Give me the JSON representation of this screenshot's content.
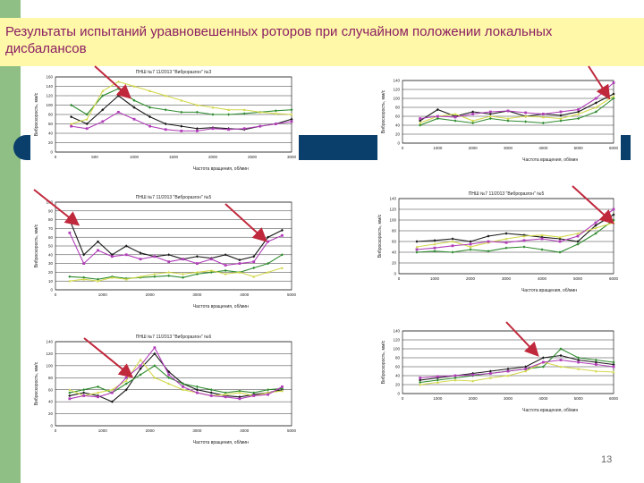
{
  "slide": {
    "title": "Результаты испытаний уравновешенных роторов при случайном положении локальных дисбалансов",
    "page_number": "13"
  },
  "colors": {
    "green_strip": "#8fbf84",
    "blue_bar": "#0b3f6b",
    "title_bg": "#fff8a8",
    "title_text": "#8a1e62",
    "arrow": "#c0283c",
    "series": [
      "#1a1a1a",
      "#2e8b2e",
      "#d2d84a",
      "#b03cb8"
    ]
  },
  "chart_data": [
    {
      "type": "line",
      "title": "ПНШ №7 11/2013 \"Виброразгон\" №3",
      "xlabel": "Частота вращения, об/мин",
      "ylabel": "Виброскорость, мм/с",
      "ylim": [
        0,
        160
      ],
      "yticks": [
        "0",
        "20",
        "40",
        "60",
        "80",
        "100",
        "120",
        "140",
        "160"
      ],
      "xticks": [
        "0",
        "500",
        "1000",
        "1500",
        "2000",
        "2500",
        "3000"
      ],
      "x": [
        200,
        400,
        600,
        800,
        1000,
        1200,
        1400,
        1600,
        1800,
        2000,
        2200,
        2400,
        2600,
        2800,
        3000
      ],
      "series": [
        {
          "values": [
            75,
            60,
            90,
            120,
            95,
            75,
            60,
            55,
            50,
            52,
            50,
            48,
            55,
            60,
            70
          ]
        },
        {
          "values": [
            100,
            80,
            120,
            135,
            110,
            95,
            90,
            85,
            85,
            80,
            80,
            82,
            85,
            88,
            90
          ]
        },
        {
          "values": [
            60,
            70,
            130,
            150,
            140,
            130,
            120,
            110,
            100,
            95,
            90,
            90,
            85,
            82,
            80
          ]
        },
        {
          "values": [
            55,
            50,
            65,
            85,
            70,
            55,
            48,
            45,
            45,
            50,
            48,
            50,
            55,
            60,
            65
          ]
        }
      ]
    },
    {
      "type": "line",
      "title": "",
      "xlabel": "Частота вращения, об/мин",
      "ylabel": "Виброскорость, мм/с",
      "ylim": [
        0,
        140
      ],
      "yticks": [
        "0",
        "20",
        "40",
        "60",
        "80",
        "100",
        "120",
        "140"
      ],
      "xticks": [
        "0",
        "1000",
        "2000",
        "3000",
        "4000",
        "5000",
        "6000"
      ],
      "x": [
        500,
        1000,
        1500,
        2000,
        2500,
        3000,
        3500,
        4000,
        4500,
        5000,
        5500,
        6000
      ],
      "series": [
        {
          "values": [
            50,
            75,
            60,
            70,
            65,
            72,
            60,
            65,
            62,
            70,
            90,
            110
          ]
        },
        {
          "values": [
            40,
            55,
            50,
            45,
            55,
            50,
            48,
            45,
            50,
            55,
            70,
            100
          ]
        },
        {
          "values": [
            45,
            60,
            65,
            50,
            60,
            55,
            60,
            58,
            55,
            65,
            80,
            105
          ]
        },
        {
          "values": [
            55,
            60,
            58,
            65,
            70,
            72,
            68,
            65,
            70,
            75,
            100,
            135
          ]
        }
      ]
    },
    {
      "type": "line",
      "title": "ПНШ №7 11/2013 \"Виброразгон\" №5",
      "xlabel": "Частота вращения, об/мин",
      "ylabel": "Виброскорость, мм/с",
      "ylim": [
        0,
        100
      ],
      "yticks": [
        "0",
        "10",
        "20",
        "30",
        "40",
        "50",
        "60",
        "70",
        "80",
        "90",
        "100"
      ],
      "xticks": [
        "0",
        "1000",
        "2000",
        "3000",
        "4000",
        "5000"
      ],
      "x": [
        300,
        600,
        900,
        1200,
        1500,
        1800,
        2100,
        2400,
        2700,
        3000,
        3300,
        3600,
        3900,
        4200,
        4500,
        4800
      ],
      "series": [
        {
          "values": [
            80,
            40,
            55,
            40,
            50,
            42,
            38,
            40,
            35,
            38,
            36,
            40,
            34,
            38,
            60,
            68
          ]
        },
        {
          "values": [
            15,
            14,
            12,
            15,
            13,
            14,
            15,
            16,
            14,
            18,
            20,
            22,
            20,
            25,
            30,
            40
          ]
        },
        {
          "values": [
            10,
            12,
            10,
            14,
            12,
            15,
            18,
            20,
            18,
            20,
            22,
            18,
            20,
            15,
            20,
            25
          ]
        },
        {
          "values": [
            65,
            30,
            45,
            38,
            40,
            35,
            38,
            32,
            35,
            30,
            35,
            28,
            30,
            32,
            55,
            62
          ]
        }
      ]
    },
    {
      "type": "line",
      "title": "ПНШ №7 11/2013 \"Виброразгон\" №5",
      "xlabel": "Частота вращения, об/мин",
      "ylabel": "Виброскорость, мм/с",
      "ylim": [
        0,
        140
      ],
      "yticks": [
        "0",
        "20",
        "40",
        "60",
        "80",
        "100",
        "120",
        "140"
      ],
      "xticks": [
        "0",
        "1000",
        "2000",
        "3000",
        "4000",
        "5000",
        "6000"
      ],
      "x": [
        500,
        1000,
        1500,
        2000,
        2500,
        3000,
        3500,
        4000,
        4500,
        5000,
        5500,
        6000
      ],
      "series": [
        {
          "values": [
            60,
            62,
            65,
            60,
            70,
            75,
            72,
            68,
            65,
            60,
            90,
            110
          ]
        },
        {
          "values": [
            40,
            42,
            40,
            45,
            42,
            48,
            50,
            45,
            40,
            55,
            75,
            100
          ]
        },
        {
          "values": [
            50,
            55,
            60,
            50,
            58,
            65,
            70,
            72,
            68,
            75,
            85,
            95
          ]
        },
        {
          "values": [
            45,
            48,
            52,
            55,
            60,
            58,
            62,
            65,
            60,
            70,
            95,
            120
          ]
        }
      ]
    },
    {
      "type": "line",
      "title": "ПНШ №7 11/2013 \"Виброразгон\" №6",
      "xlabel": "Частота вращения, об/мин",
      "ylabel": "Виброскорость, мм/с",
      "ylim": [
        0,
        140
      ],
      "yticks": [
        "0",
        "20",
        "40",
        "60",
        "80",
        "100",
        "120",
        "140"
      ],
      "xticks": [
        "0",
        "1000",
        "2000",
        "3000",
        "4000",
        "5000"
      ],
      "x": [
        300,
        600,
        900,
        1200,
        1500,
        1800,
        2100,
        2400,
        2700,
        3000,
        3300,
        3600,
        3900,
        4200,
        4500,
        4800
      ],
      "series": [
        {
          "values": [
            50,
            55,
            50,
            40,
            60,
            95,
            120,
            90,
            70,
            60,
            55,
            50,
            48,
            52,
            55,
            60
          ]
        },
        {
          "values": [
            55,
            60,
            65,
            55,
            70,
            85,
            100,
            80,
            70,
            65,
            60,
            55,
            58,
            55,
            60,
            62
          ]
        },
        {
          "values": [
            60,
            50,
            55,
            60,
            75,
            110,
            80,
            70,
            60,
            55,
            50,
            52,
            55,
            50,
            55,
            58
          ]
        },
        {
          "values": [
            45,
            50,
            48,
            55,
            80,
            100,
            130,
            85,
            65,
            55,
            50,
            48,
            45,
            50,
            52,
            65
          ]
        }
      ]
    },
    {
      "type": "line",
      "title": "",
      "xlabel": "Частота вращения, об/мин",
      "ylabel": "Виброскорость, мм/с",
      "ylim": [
        0,
        140
      ],
      "yticks": [
        "0",
        "20",
        "40",
        "60",
        "80",
        "100",
        "120",
        "140"
      ],
      "xticks": [
        "0",
        "1000",
        "2000",
        "3000",
        "4000",
        "5000",
        "6000"
      ],
      "x": [
        500,
        1000,
        1500,
        2000,
        2500,
        3000,
        3500,
        4000,
        4500,
        5000,
        5500,
        6000
      ],
      "series": [
        {
          "values": [
            30,
            35,
            40,
            45,
            50,
            55,
            60,
            80,
            85,
            75,
            70,
            65
          ]
        },
        {
          "values": [
            25,
            30,
            35,
            40,
            45,
            50,
            55,
            60,
            100,
            80,
            75,
            70
          ]
        },
        {
          "values": [
            20,
            25,
            30,
            28,
            35,
            40,
            50,
            70,
            60,
            55,
            50,
            48
          ]
        },
        {
          "values": [
            35,
            38,
            40,
            42,
            45,
            50,
            55,
            70,
            75,
            70,
            65,
            60
          ]
        }
      ]
    }
  ]
}
